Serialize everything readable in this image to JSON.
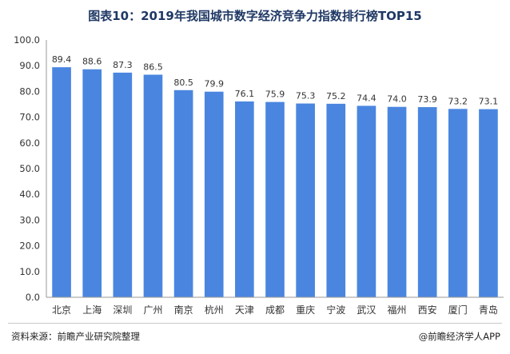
{
  "chart_data": {
    "type": "bar",
    "title": "图表10：2019年我国城市数字经济竞争力指数排行榜TOP15",
    "categories": [
      "北京",
      "上海",
      "深圳",
      "广州",
      "南京",
      "杭州",
      "天津",
      "成都",
      "重庆",
      "宁波",
      "武汉",
      "福州",
      "西安",
      "厦门",
      "青岛"
    ],
    "values": [
      89.4,
      88.6,
      87.3,
      86.5,
      80.5,
      79.9,
      76.1,
      75.9,
      75.3,
      75.2,
      74.4,
      74.0,
      73.9,
      73.2,
      73.1
    ],
    "value_labels": [
      "89.4",
      "88.6",
      "87.3",
      "86.5",
      "80.5",
      "79.9",
      "76.1",
      "75.9",
      "75.3",
      "75.2",
      "74.4",
      "74.0",
      "73.9",
      "73.2",
      "73.1"
    ],
    "ylim": [
      0,
      100
    ],
    "yticks": [
      "0.0",
      "10.0",
      "20.0",
      "30.0",
      "40.0",
      "50.0",
      "60.0",
      "70.0",
      "80.0",
      "90.0",
      "100.0"
    ],
    "grid": false,
    "legend": "none",
    "bar_color": "#4a86e0"
  },
  "footer": {
    "source": "资料来源：前瞻产业研究院整理",
    "credit": "@前瞻经济学人APP"
  }
}
